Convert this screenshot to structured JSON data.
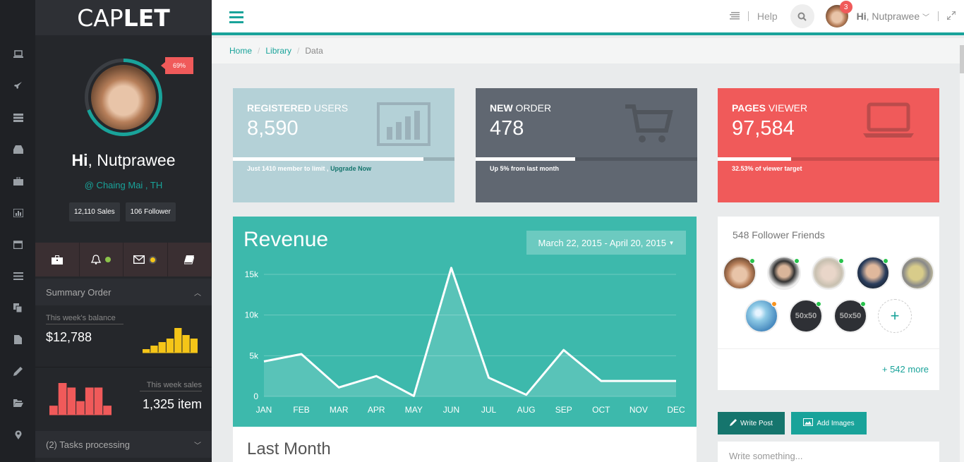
{
  "app": {
    "logo_light": "CAP",
    "logo_bold": "LET"
  },
  "profile": {
    "progress": "69%",
    "progress_fraction": 0.69,
    "greeting": "Hi",
    "name": "Nutprawee",
    "location": "@ Chaing Mai , TH",
    "sales": "12,110 Sales",
    "followers": "106 Follower"
  },
  "summary": {
    "title": "Summary Order",
    "balance_label": "This week's balance",
    "balance_value": "$12,788",
    "sales_label": "This week sales",
    "sales_value": "1,325 item",
    "balance_bars": [
      1,
      2,
      3,
      4,
      7,
      5,
      4
    ],
    "sales_bars": [
      2,
      7,
      6,
      3,
      6,
      6,
      2
    ],
    "tasks": "(2) Tasks processing"
  },
  "topbar": {
    "help": "Help",
    "hi": "Hi",
    "user": "Nutprawee",
    "notifications": "3"
  },
  "breadcrumb": [
    "Home",
    "Library",
    "Data"
  ],
  "stats": [
    {
      "bold": "REGISTERED",
      "rest": " USERS",
      "value": "8,590",
      "note": "Just 1410 member to limit ,",
      "link": "Upgrade Now",
      "progress": 0.86,
      "icon": "bar-chart-icon"
    },
    {
      "bold": "NEW",
      "rest": " ORDER",
      "value": "478",
      "note": "Up 5% from last month",
      "link": "",
      "progress": 0.45,
      "icon": "cart-icon"
    },
    {
      "bold": "PAGES",
      "rest": " VIEWER",
      "value": "97,584",
      "note": "32.53% of viewer target",
      "link": "",
      "progress": 0.33,
      "icon": "laptop-icon"
    }
  ],
  "revenue": {
    "title": "Revenue",
    "date_range": "March 22, 2015 - April 20, 2015"
  },
  "chart_data": {
    "type": "area",
    "categories": [
      "JAN",
      "FEB",
      "MAR",
      "APR",
      "MAY",
      "JUN",
      "JUL",
      "AUG",
      "SEP",
      "OCT",
      "NOV",
      "DEC"
    ],
    "values": [
      4300,
      5200,
      1100,
      2500,
      50,
      15800,
      2300,
      200,
      5700,
      1900,
      1900,
      1900
    ],
    "ylim": [
      0,
      15000
    ],
    "yticks": [
      "0",
      "5k",
      "10k",
      "15k"
    ],
    "ytick_values": [
      0,
      5000,
      10000,
      15000
    ],
    "grid": true,
    "colors": {
      "line": "#ffffff",
      "background": "#3db9ac"
    }
  },
  "last_month": "Last Month",
  "friends": {
    "title": "548 Follower Friends",
    "placeholder": "50x50",
    "more": "+ 542 more"
  },
  "actions": {
    "write_post": "Write Post",
    "add_images": "Add Images",
    "write_placeholder": "Write something..."
  }
}
